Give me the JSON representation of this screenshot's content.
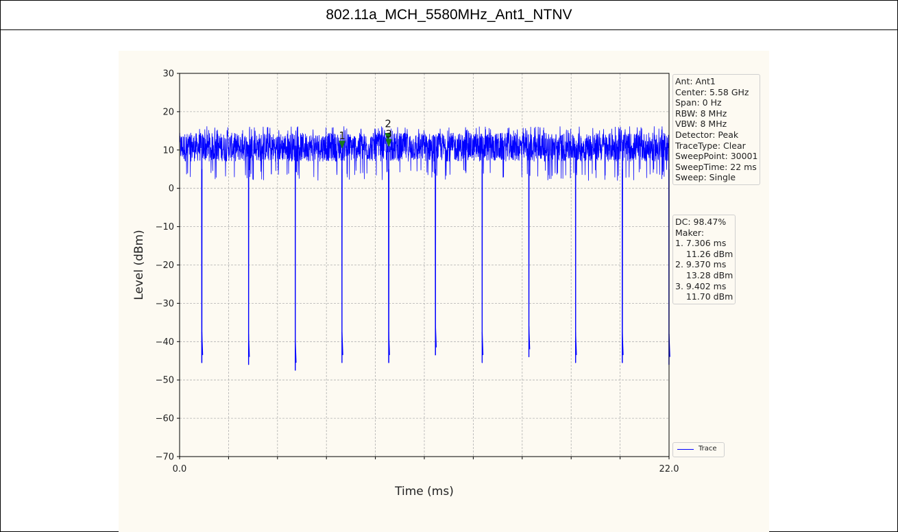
{
  "page_title": "802.11a_MCH_5580MHz_Ant1_NTNV",
  "chart_data": {
    "type": "line",
    "xlabel": "Time (ms)",
    "ylabel": "Level (dBm)",
    "xlim": [
      0.0,
      22.0
    ],
    "ylim": [
      -70,
      30
    ],
    "x_ticks": [
      "0.0",
      "22.0"
    ],
    "y_ticks": [
      30,
      20,
      10,
      0,
      -10,
      -20,
      -30,
      -40,
      -50,
      -60,
      -70
    ],
    "grid": true,
    "series": [
      {
        "name": "Trace",
        "color": "#0000ff",
        "baseline_level_dbm": 11,
        "noise_band_dbm": [
          5,
          15
        ],
        "dip_times_ms": [
          1.0,
          3.1,
          5.2,
          7.3,
          9.4,
          11.5,
          13.6,
          15.7,
          17.8,
          19.9,
          22.0
        ],
        "dip_levels_dbm": [
          -45.5,
          -46,
          -47.5,
          -45.5,
          -45.5,
          -43.5,
          -45.5,
          -44,
          -45.5,
          -45.5,
          -46
        ]
      }
    ],
    "markers": [
      {
        "label": "1",
        "x": 7.306,
        "y": 11.26
      },
      {
        "label": "2",
        "x": 9.37,
        "y": 13.28
      },
      {
        "label": "3",
        "x": 9.402,
        "y": 11.7
      }
    ],
    "marker_color": "#1a7a1a",
    "legend": {
      "placement": "bottom-right",
      "entries": [
        "Trace"
      ]
    }
  },
  "info": {
    "settings": [
      "Ant: Ant1",
      "Center: 5.58 GHz",
      "Span: 0 Hz",
      "RBW: 8 MHz",
      "VBW: 8 MHz",
      "Detector: Peak",
      "TraceType: Clear",
      "SweepPoint: 30001",
      "SweepTime: 22 ms",
      "Sweep: Single"
    ],
    "markers": [
      "DC: 98.47%",
      "Maker:",
      "1. 7.306 ms",
      "    11.26 dBm",
      "2. 9.370 ms",
      "    13.28 dBm",
      "3. 9.402 ms",
      "    11.70 dBm"
    ]
  }
}
